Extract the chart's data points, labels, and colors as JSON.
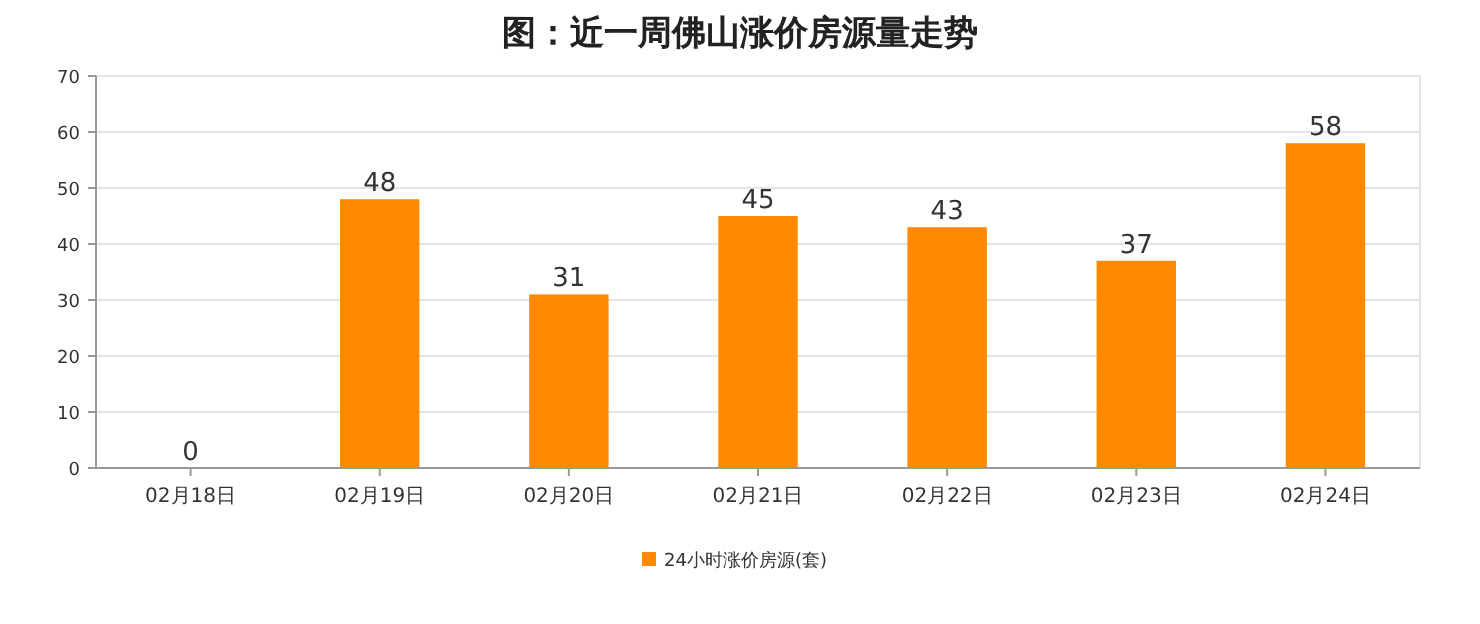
{
  "chart_data": {
    "type": "bar",
    "title": "图：近一周佛山涨价房源量走势",
    "categories": [
      "02月18日",
      "02月19日",
      "02月20日",
      "02月21日",
      "02月22日",
      "02月23日",
      "02月24日"
    ],
    "series": [
      {
        "name": "24小时涨价房源(套)",
        "color": "#ff8a00",
        "values": [
          0,
          48,
          31,
          45,
          43,
          37,
          58
        ]
      }
    ],
    "ylim": [
      0,
      70
    ],
    "yticks": [
      0,
      10,
      20,
      30,
      40,
      50,
      60,
      70
    ],
    "grid": "y",
    "legend": "bottom",
    "data_labels": true
  }
}
